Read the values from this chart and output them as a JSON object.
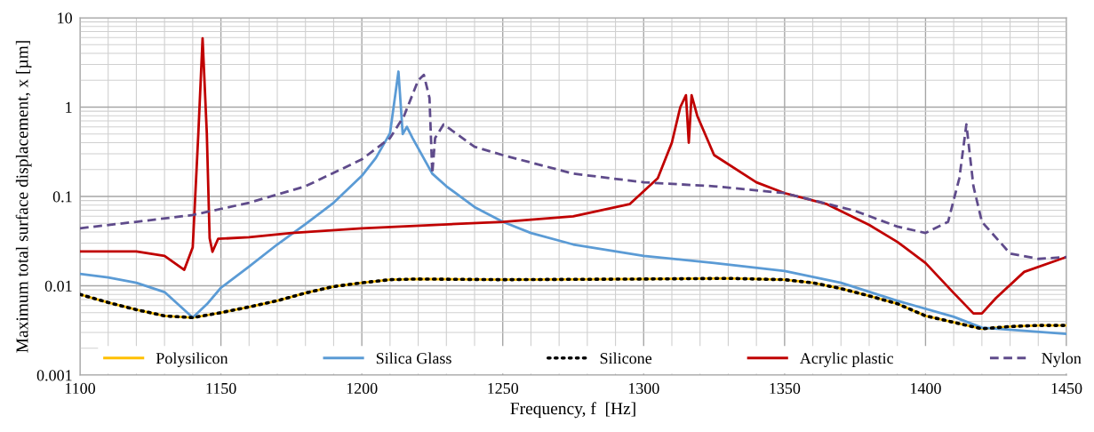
{
  "chart_data": {
    "type": "line",
    "xlabel": "Frequency, f  [Hz]",
    "ylabel": "Maximum total surface displacement, x [µm]",
    "xlim": [
      1100,
      1450
    ],
    "xticks": [
      1100,
      1150,
      1200,
      1250,
      1300,
      1350,
      1400,
      1450
    ],
    "ylim": [
      0.001,
      10
    ],
    "yticks": [
      {
        "value": 0.001,
        "label": "0.001"
      },
      {
        "value": 0.01,
        "label": "0.01"
      },
      {
        "value": 0.1,
        "label": "0.1"
      },
      {
        "value": 1,
        "label": "1"
      },
      {
        "value": 10,
        "label": "10"
      }
    ],
    "log": "y",
    "grid": true,
    "legend": "bottom",
    "series": [
      {
        "name": "Polysilicon",
        "color": "#ffc000",
        "line_style": "solid",
        "x": [
          1100,
          1110,
          1120,
          1130,
          1140,
          1150,
          1160,
          1170,
          1180,
          1190,
          1200,
          1210,
          1220,
          1250,
          1300,
          1330,
          1350,
          1360,
          1370,
          1380,
          1390,
          1400,
          1410,
          1420,
          1430,
          1440,
          1450
        ],
        "values": [
          0.008,
          0.0065,
          0.0054,
          0.0046,
          0.0044,
          0.005,
          0.0058,
          0.0068,
          0.0083,
          0.0098,
          0.0108,
          0.0117,
          0.0119,
          0.0117,
          0.0119,
          0.0121,
          0.0117,
          0.0108,
          0.0093,
          0.0077,
          0.0063,
          0.0046,
          0.0039,
          0.0033,
          0.0035,
          0.0036,
          0.0036
        ]
      },
      {
        "name": "Silica Glass",
        "color": "#5b9bd5",
        "line_style": "solid",
        "x": [
          1100,
          1110,
          1120,
          1130,
          1140,
          1145,
          1150,
          1160,
          1170,
          1180,
          1190,
          1200,
          1205,
          1210,
          1213,
          1214.5,
          1216,
          1218,
          1225,
          1230,
          1240,
          1250,
          1260,
          1275,
          1300,
          1325,
          1350,
          1370,
          1390,
          1410,
          1420,
          1450
        ],
        "values": [
          0.0136,
          0.0124,
          0.0108,
          0.0085,
          0.0044,
          0.0062,
          0.0095,
          0.0164,
          0.029,
          0.049,
          0.085,
          0.17,
          0.27,
          0.51,
          2.5,
          0.5,
          0.6,
          0.45,
          0.18,
          0.13,
          0.076,
          0.052,
          0.039,
          0.029,
          0.0216,
          0.018,
          0.0146,
          0.0108,
          0.0068,
          0.0045,
          0.0034,
          0.0029
        ]
      },
      {
        "name": "Silicone",
        "color": "#000000",
        "line_style": "dotted",
        "x": [
          1100,
          1110,
          1120,
          1130,
          1140,
          1150,
          1160,
          1170,
          1180,
          1190,
          1200,
          1210,
          1220,
          1250,
          1300,
          1330,
          1350,
          1360,
          1370,
          1380,
          1390,
          1400,
          1410,
          1420,
          1430,
          1440,
          1450
        ],
        "values": [
          0.008,
          0.0065,
          0.0054,
          0.0046,
          0.0044,
          0.005,
          0.0058,
          0.0068,
          0.0083,
          0.0098,
          0.0108,
          0.0117,
          0.0119,
          0.0117,
          0.0119,
          0.0121,
          0.0117,
          0.0108,
          0.0093,
          0.0077,
          0.0063,
          0.0046,
          0.0039,
          0.0033,
          0.0035,
          0.0036,
          0.0036
        ]
      },
      {
        "name": "Acrylic plastic",
        "color": "#c00000",
        "line_style": "solid",
        "x": [
          1100,
          1120,
          1130,
          1137,
          1140,
          1142,
          1143.5,
          1145,
          1146,
          1147,
          1149,
          1160,
          1175,
          1200,
          1250,
          1275,
          1295,
          1305,
          1310,
          1313,
          1315,
          1316,
          1317,
          1319,
          1325,
          1340,
          1350,
          1365,
          1380,
          1390,
          1400,
          1410,
          1417,
          1420,
          1425,
          1435,
          1450
        ],
        "values": [
          0.0242,
          0.0242,
          0.0216,
          0.0151,
          0.027,
          0.51,
          5.9,
          0.51,
          0.034,
          0.024,
          0.0335,
          0.035,
          0.039,
          0.044,
          0.052,
          0.06,
          0.082,
          0.16,
          0.4,
          1.0,
          1.36,
          0.4,
          1.36,
          0.8,
          0.29,
          0.144,
          0.109,
          0.082,
          0.048,
          0.031,
          0.018,
          0.0083,
          0.0049,
          0.0049,
          0.0073,
          0.0143,
          0.021
        ]
      },
      {
        "name": "Nylon",
        "color": "#5f4b8b",
        "line_style": "dashed",
        "x": [
          1100,
          1120,
          1140,
          1160,
          1180,
          1200,
          1210,
          1215,
          1220,
          1222,
          1224,
          1225,
          1226,
          1229,
          1240,
          1250,
          1275,
          1300,
          1325,
          1350,
          1375,
          1390,
          1400,
          1408,
          1412,
          1414.5,
          1417,
          1420,
          1430,
          1440,
          1450
        ],
        "values": [
          0.044,
          0.052,
          0.062,
          0.085,
          0.13,
          0.26,
          0.45,
          0.8,
          2.0,
          2.3,
          1.27,
          0.18,
          0.45,
          0.64,
          0.36,
          0.29,
          0.18,
          0.144,
          0.13,
          0.109,
          0.069,
          0.046,
          0.039,
          0.052,
          0.16,
          0.64,
          0.13,
          0.052,
          0.023,
          0.02,
          0.021
        ]
      }
    ]
  }
}
